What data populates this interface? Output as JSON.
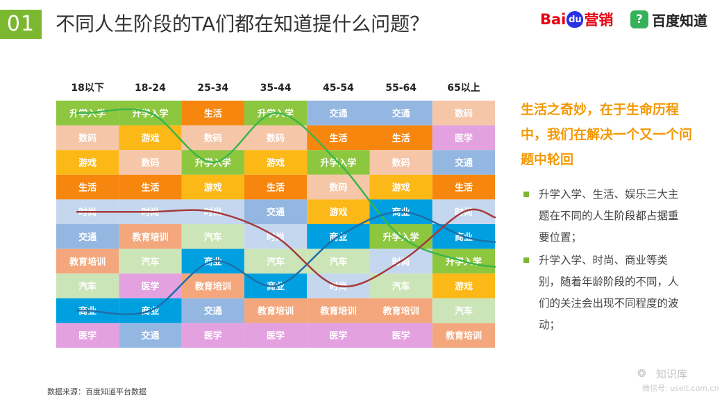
{
  "header": {
    "badge": "01",
    "title": "不同人生阶段的TA们都在知道提什么问题？",
    "logo_baidu": {
      "bai": "Bai",
      "du": "du",
      "marketing": "营销"
    },
    "logo_zhidao": {
      "mark": "?",
      "text": "百度知道"
    }
  },
  "chart_data": {
    "type": "table",
    "columns": [
      "18以下",
      "18-24",
      "25-34",
      "35-44",
      "45-54",
      "55-64",
      "65以上"
    ],
    "rows": [
      [
        "升学入学",
        "升学入学",
        "生活",
        "升学入学",
        "交通",
        "交通",
        "数码"
      ],
      [
        "数码",
        "游戏",
        "数码",
        "数码",
        "生活",
        "生活",
        "医学"
      ],
      [
        "游戏",
        "数码",
        "升学入学",
        "游戏",
        "升学入学",
        "数码",
        "交通"
      ],
      [
        "生活",
        "生活",
        "游戏",
        "生活",
        "数码",
        "游戏",
        "生活"
      ],
      [
        "时尚",
        "时尚",
        "时尚",
        "交通",
        "游戏",
        "商业",
        "时尚"
      ],
      [
        "交通",
        "教育培训",
        "汽车",
        "时尚",
        "商业",
        "升学入学",
        "商业"
      ],
      [
        "教育培训",
        "汽车",
        "商业",
        "汽车",
        "汽车",
        "时尚",
        "升学入学"
      ],
      [
        "汽车",
        "医学",
        "教育培训",
        "商业",
        "时尚",
        "汽车",
        "游戏"
      ],
      [
        "商业",
        "商业",
        "交通",
        "教育培训",
        "教育培训",
        "教育培训",
        "汽车"
      ],
      [
        "医学",
        "交通",
        "医学",
        "医学",
        "医学",
        "医学",
        "教育培训"
      ]
    ],
    "category_colors": {
      "升学入学": "#8dc63f",
      "数码": "#f5c6a8",
      "游戏": "#fbb817",
      "生活": "#f7860f",
      "时尚": "#c5d7ee",
      "交通": "#94b7e1",
      "教育培训": "#f4a77c",
      "汽车": "#cce5b8",
      "商业": "#00a0e0",
      "医学": "#e3a1e0"
    },
    "series": [
      {
        "category": "升学入学",
        "color": "#3cb54a",
        "ranks": [
          1,
          1,
          3,
          1,
          3,
          6,
          7
        ]
      },
      {
        "category": "商业",
        "color": "#1f6ea8",
        "ranks": [
          9,
          9,
          7,
          8,
          6,
          5,
          6
        ]
      },
      {
        "category": "时尚",
        "color": "#a53a3a",
        "ranks": [
          5,
          5,
          5,
          6,
          8,
          7,
          5
        ]
      }
    ]
  },
  "sidebar": {
    "headline": "生活之奇妙，在于生命历程中，我们在解决一个又一个问题中轮回",
    "bullets": [
      "升学入学、生活、娱乐三大主题在不同的人生阶段都占据重要位置；",
      "升学入学、时尚、商业等类别，随着年龄阶段的不同，人们的关注会出现不同程度的波动；"
    ]
  },
  "footer": {
    "source": "数据来源：百度知道平台数据",
    "watermark_name": "知识库",
    "watermark_id": "微信号: useit.com.cn"
  }
}
